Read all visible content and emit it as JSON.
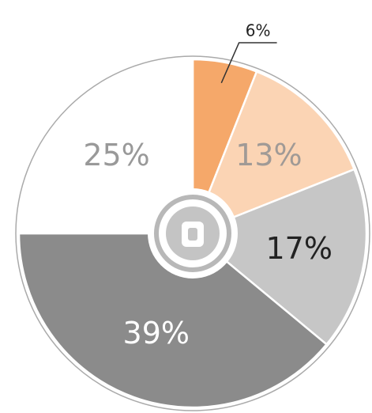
{
  "chart_data": {
    "type": "pie",
    "categories": [
      null,
      null,
      null,
      null,
      null
    ],
    "values": [
      6,
      13,
      17,
      39,
      25
    ],
    "value_labels": [
      "6%",
      "13%",
      "17%",
      "39%",
      "25%"
    ],
    "colors": [
      "#f5a86a",
      "#fbd4b4",
      "#c6c6c6",
      "#8b8b8b",
      "#ffffff"
    ],
    "label_colors": [
      "#222222",
      "#a09a96",
      "#222222",
      "#ffffff",
      "#999999"
    ]
  }
}
